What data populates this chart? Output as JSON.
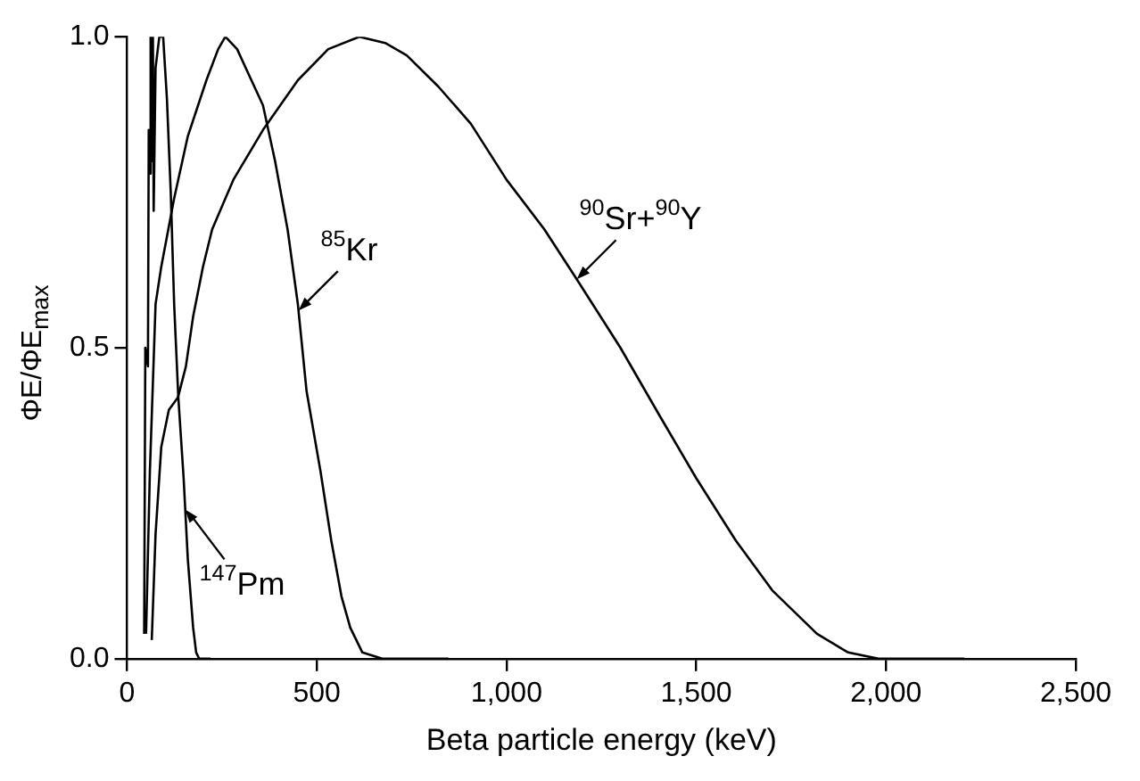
{
  "chart_data": {
    "type": "line",
    "xlabel": "Beta particle energy (keV)",
    "ylabel": "ΦE/ΦE$_{max}$",
    "xlim": [
      0,
      2500
    ],
    "ylim": [
      0,
      1
    ],
    "xticks": [
      0,
      500,
      {
        "value": 1000,
        "label": "1,000"
      },
      {
        "value": 1500,
        "label": "1,500"
      },
      {
        "value": 2000,
        "label": "2,000"
      },
      {
        "value": 2500,
        "label": "2,500"
      }
    ],
    "yticks": [
      {
        "value": 0,
        "label": "0.0"
      },
      0.5,
      {
        "value": 1,
        "label": "1.0"
      }
    ],
    "grid": false,
    "legend": false,
    "marker": "none",
    "line_style": "solid",
    "series": [
      {
        "color": "#000000",
        "x": [
          45,
          48,
          55,
          57,
          60,
          62,
          65,
          68,
          70,
          75,
          85,
          95,
          105,
          115,
          124,
          135,
          149,
          160,
          174,
          182,
          190,
          205,
          220
        ],
        "values": [
          0.04,
          0.5,
          0.47,
          0.85,
          0.78,
          1.0,
          0.8,
          1.0,
          0.72,
          0.95,
          1.0,
          1.0,
          0.9,
          0.75,
          0.57,
          0.42,
          0.29,
          0.16,
          0.05,
          0.01,
          0,
          0,
          0
        ]
      },
      {
        "color": "#000000",
        "x": [
          50,
          60,
          75,
          90,
          124,
          160,
          209,
          240,
          259,
          290,
          320,
          358,
          390,
          423,
          450,
          473,
          510,
          538,
          565,
          588,
          620,
          672,
          750,
          847
        ],
        "values": [
          0.04,
          0.3,
          0.57,
          0.63,
          0.74,
          0.84,
          0.93,
          0.98,
          1.0,
          0.98,
          0.94,
          0.89,
          0.8,
          0.69,
          0.57,
          0.43,
          0.3,
          0.19,
          0.1,
          0.05,
          0.01,
          0,
          0,
          0
        ]
      },
      {
        "color": "#000000",
        "x": [
          65,
          75,
          90,
          110,
          134,
          155,
          174,
          200,
          224,
          280,
          358,
          450,
          530,
          612,
          680,
          737,
          820,
          906,
          1000,
          1100,
          1185,
          1300,
          1404,
          1500,
          1604,
          1700,
          1818,
          1900,
          1980,
          2032,
          2100,
          2206
        ],
        "values": [
          0.03,
          0.2,
          0.34,
          0.4,
          0.42,
          0.47,
          0.55,
          0.63,
          0.69,
          0.77,
          0.85,
          0.93,
          0.98,
          1.0,
          0.99,
          0.97,
          0.92,
          0.86,
          0.77,
          0.69,
          0.61,
          0.5,
          0.39,
          0.29,
          0.19,
          0.11,
          0.04,
          0.01,
          0,
          0,
          0,
          0
        ]
      }
    ],
    "annotations": [
      {
        "text": "$^{147}$Pm",
        "x": 153,
        "y": 0.24
      },
      {
        "text": "$^{85}$Kr",
        "x": 452,
        "y": 0.56
      },
      {
        "text": "$^{90}$Sr+$^{90}$Y",
        "x": 1185,
        "y": 0.61
      }
    ]
  }
}
